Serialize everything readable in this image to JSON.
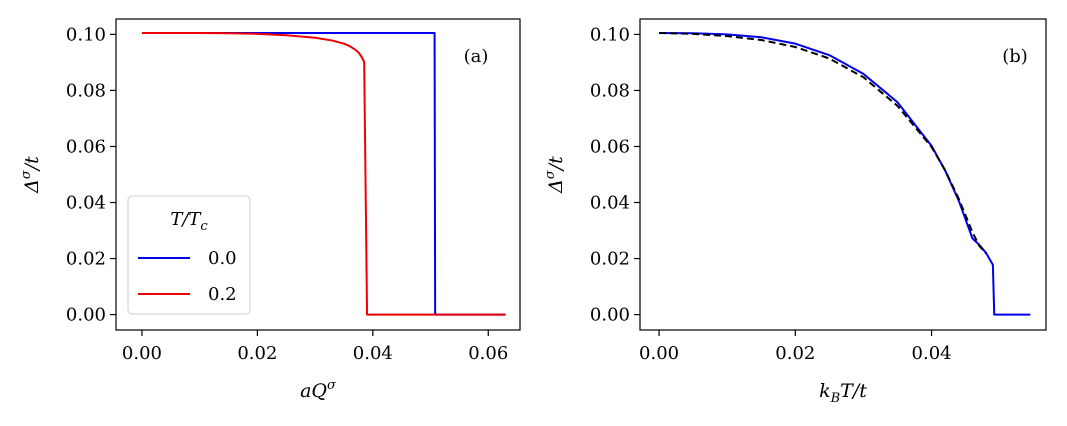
{
  "chart_data": [
    {
      "type": "line",
      "panel_label": "(a)",
      "xlabel": "aQσ",
      "ylabel": "Δσ/t",
      "xlim": [
        -0.0045,
        0.0655
      ],
      "ylim": [
        -0.0055,
        0.1055
      ],
      "xticks": [
        0.0,
        0.02,
        0.04,
        0.06
      ],
      "xtick_labels": [
        "0.00",
        "0.02",
        "0.04",
        "0.06"
      ],
      "yticks": [
        0.0,
        0.02,
        0.04,
        0.06,
        0.08,
        0.1
      ],
      "ytick_labels": [
        "0.00",
        "0.02",
        "0.04",
        "0.06",
        "0.08",
        "0.10"
      ],
      "legend": {
        "title": "T/Tc",
        "placement": "lower-left",
        "entries": [
          "0.0",
          "0.2"
        ]
      },
      "series": [
        {
          "name": "0.0",
          "color": "#0000ee",
          "dash": "solid",
          "x": [
            0.0,
            0.01,
            0.02,
            0.03,
            0.04,
            0.05,
            0.0507,
            0.0508,
            0.055,
            0.06,
            0.063
          ],
          "y": [
            0.1005,
            0.1005,
            0.1005,
            0.1005,
            0.1005,
            0.1005,
            0.1005,
            0.0,
            0.0,
            0.0,
            0.0
          ]
        },
        {
          "name": "0.2",
          "color": "#ee0000",
          "dash": "solid",
          "x": [
            0.0,
            0.01,
            0.015,
            0.02,
            0.025,
            0.03,
            0.033,
            0.035,
            0.036,
            0.037,
            0.0375,
            0.038,
            0.0385,
            0.039,
            0.045,
            0.05,
            0.055,
            0.06,
            0.063
          ],
          "y": [
            0.1005,
            0.1005,
            0.1004,
            0.1002,
            0.0997,
            0.0988,
            0.0978,
            0.0967,
            0.0958,
            0.0945,
            0.0936,
            0.0922,
            0.0902,
            0.0,
            0.0,
            0.0,
            0.0,
            0.0,
            0.0
          ]
        }
      ]
    },
    {
      "type": "line",
      "panel_label": "(b)",
      "xlabel": "kBT/t",
      "ylabel": "Δσ/t",
      "xlim": [
        -0.0028,
        0.0568
      ],
      "ylim": [
        -0.0055,
        0.1055
      ],
      "xticks": [
        0.0,
        0.02,
        0.04
      ],
      "xtick_labels": [
        "0.00",
        "0.02",
        "0.04"
      ],
      "yticks": [
        0.0,
        0.02,
        0.04,
        0.06,
        0.08,
        0.1
      ],
      "ytick_labels": [
        "0.00",
        "0.02",
        "0.04",
        "0.06",
        "0.08",
        "0.10"
      ],
      "series": [
        {
          "color": "#0000ee",
          "dash": "solid",
          "x": [
            0.0,
            0.005,
            0.01,
            0.015,
            0.02,
            0.025,
            0.03,
            0.035,
            0.04,
            0.042,
            0.044,
            0.046,
            0.047,
            0.048,
            0.0485,
            0.049,
            0.0492,
            0.05,
            0.052,
            0.0545
          ],
          "y": [
            0.1005,
            0.1004,
            0.1,
            0.099,
            0.0967,
            0.0926,
            0.0859,
            0.0758,
            0.0602,
            0.0514,
            0.0406,
            0.0272,
            0.0249,
            0.022,
            0.0199,
            0.0178,
            0.0,
            0.0,
            0.0,
            0.0
          ]
        },
        {
          "color": "#000000",
          "dash": "dashed",
          "x": [
            0.0,
            0.005,
            0.01,
            0.015,
            0.02,
            0.025,
            0.03,
            0.035,
            0.04,
            0.042,
            0.044,
            0.046,
            0.047,
            0.048
          ],
          "y": [
            0.1005,
            0.1002,
            0.0994,
            0.098,
            0.0955,
            0.0914,
            0.0847,
            0.0745,
            0.0598,
            0.0515,
            0.0413,
            0.0294,
            0.0246,
            0.0218
          ]
        }
      ]
    }
  ]
}
